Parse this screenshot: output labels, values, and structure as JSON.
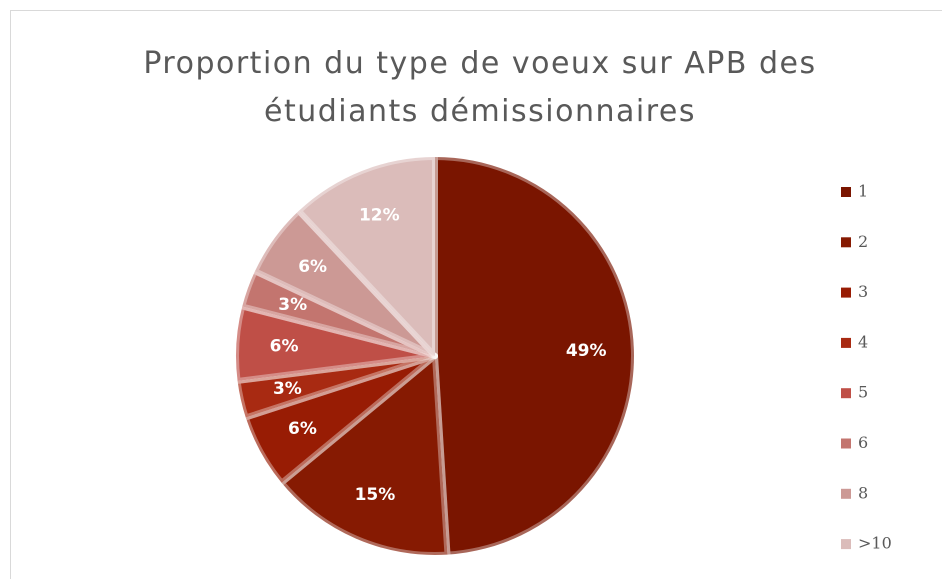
{
  "chart_data": {
    "type": "pie",
    "title": "Proportion du type de voeux sur APB des étudiants démissionnaires",
    "categories": [
      "1",
      "2",
      "3",
      "4",
      "5",
      "6",
      "8",
      ">10"
    ],
    "values": [
      49,
      15,
      6,
      3,
      6,
      3,
      6,
      12
    ],
    "value_labels": [
      "49%",
      "15%",
      "6%",
      "3%",
      "6%",
      "3%",
      "6%",
      "12%"
    ],
    "colors": [
      "#7a1500",
      "#861a02",
      "#981c04",
      "#a82a12",
      "#bf4f47",
      "#c3756f",
      "#cc9995",
      "#dbbcba"
    ],
    "legend": "right"
  }
}
